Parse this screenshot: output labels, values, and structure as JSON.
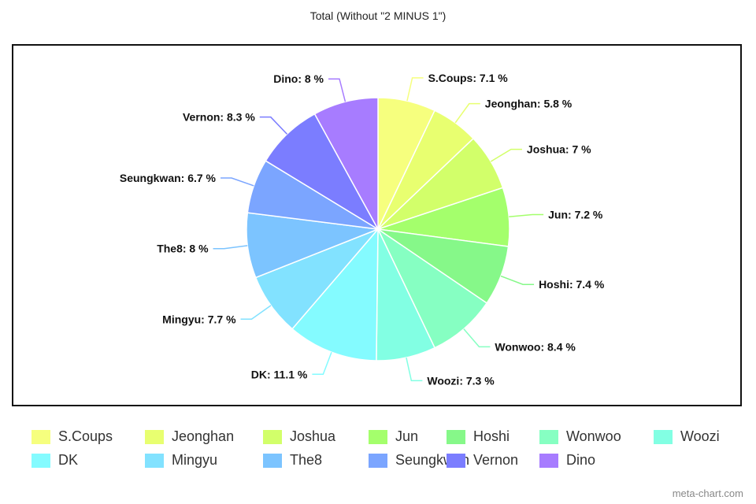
{
  "watermark": "meta-chart.com",
  "chart_data": {
    "type": "pie",
    "title": "Total (Without \"2 MINUS 1\")",
    "label_suffix": " %",
    "slices": [
      {
        "name": "S.Coups",
        "value": 7.1,
        "color": "#f6ff7e"
      },
      {
        "name": "Jeonghan",
        "value": 5.8,
        "color": "#e8ff70"
      },
      {
        "name": "Joshua",
        "value": 7,
        "color": "#d2ff6a"
      },
      {
        "name": "Jun",
        "value": 7.2,
        "color": "#a4ff6c"
      },
      {
        "name": "Hoshi",
        "value": 7.4,
        "color": "#86f889"
      },
      {
        "name": "Wonwoo",
        "value": 8.4,
        "color": "#86ffc2"
      },
      {
        "name": "Woozi",
        "value": 7.3,
        "color": "#82ffe3"
      },
      {
        "name": "DK",
        "value": 11.1,
        "color": "#84fbff"
      },
      {
        "name": "Mingyu",
        "value": 7.7,
        "color": "#82e2ff"
      },
      {
        "name": "The8",
        "value": 8,
        "color": "#7cc4ff"
      },
      {
        "name": "Seungkwan",
        "value": 6.7,
        "color": "#7ba5ff"
      },
      {
        "name": "Vernon",
        "value": 8.3,
        "color": "#7b7dff"
      },
      {
        "name": "Dino",
        "value": 8,
        "color": "#a77cff"
      }
    ]
  }
}
